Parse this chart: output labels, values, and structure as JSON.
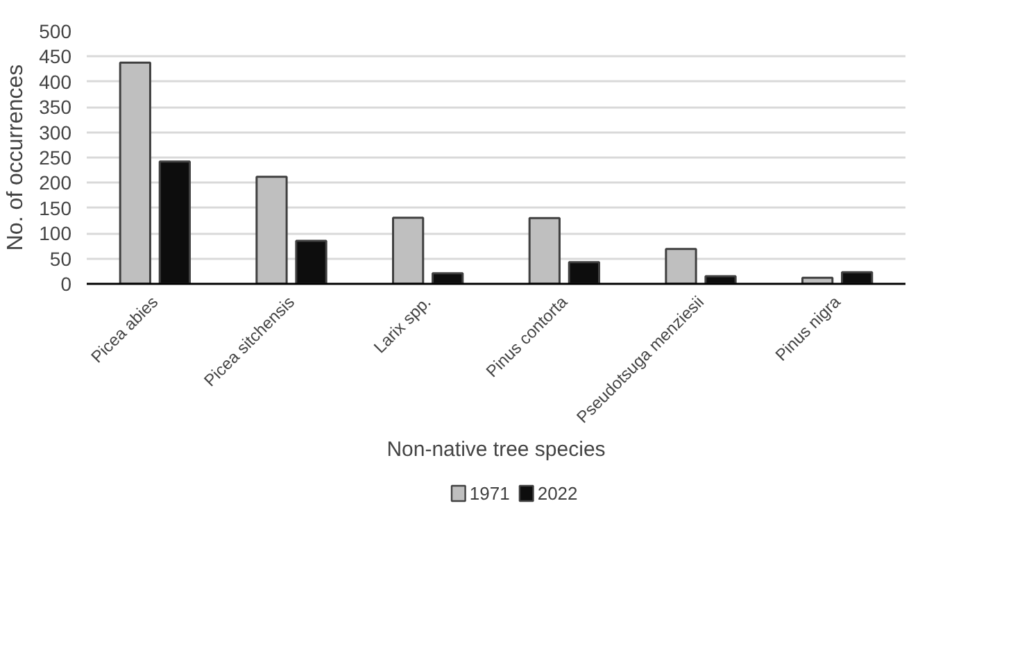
{
  "chart_data": {
    "type": "bar",
    "xlabel": "Non-native tree species",
    "ylabel": "No. of occurrences",
    "categories": [
      "Picea abies",
      "Picea sitchensis",
      "Larix spp.",
      "Pinus contorta",
      "Pseudotsuga menziesii",
      "Pinus nigra"
    ],
    "series": [
      {
        "name": "1971",
        "color": "#bfbfbf",
        "values": [
          438,
          212,
          131,
          130,
          69,
          12
        ]
      },
      {
        "name": "2022",
        "color": "#0d0d0d",
        "values": [
          242,
          85,
          21,
          43,
          15,
          23
        ]
      }
    ],
    "ylim": [
      0,
      500
    ],
    "yticks": [
      0,
      50,
      100,
      150,
      200,
      250,
      300,
      350,
      400,
      450,
      500
    ],
    "grid": "y",
    "legend": "bottom"
  }
}
